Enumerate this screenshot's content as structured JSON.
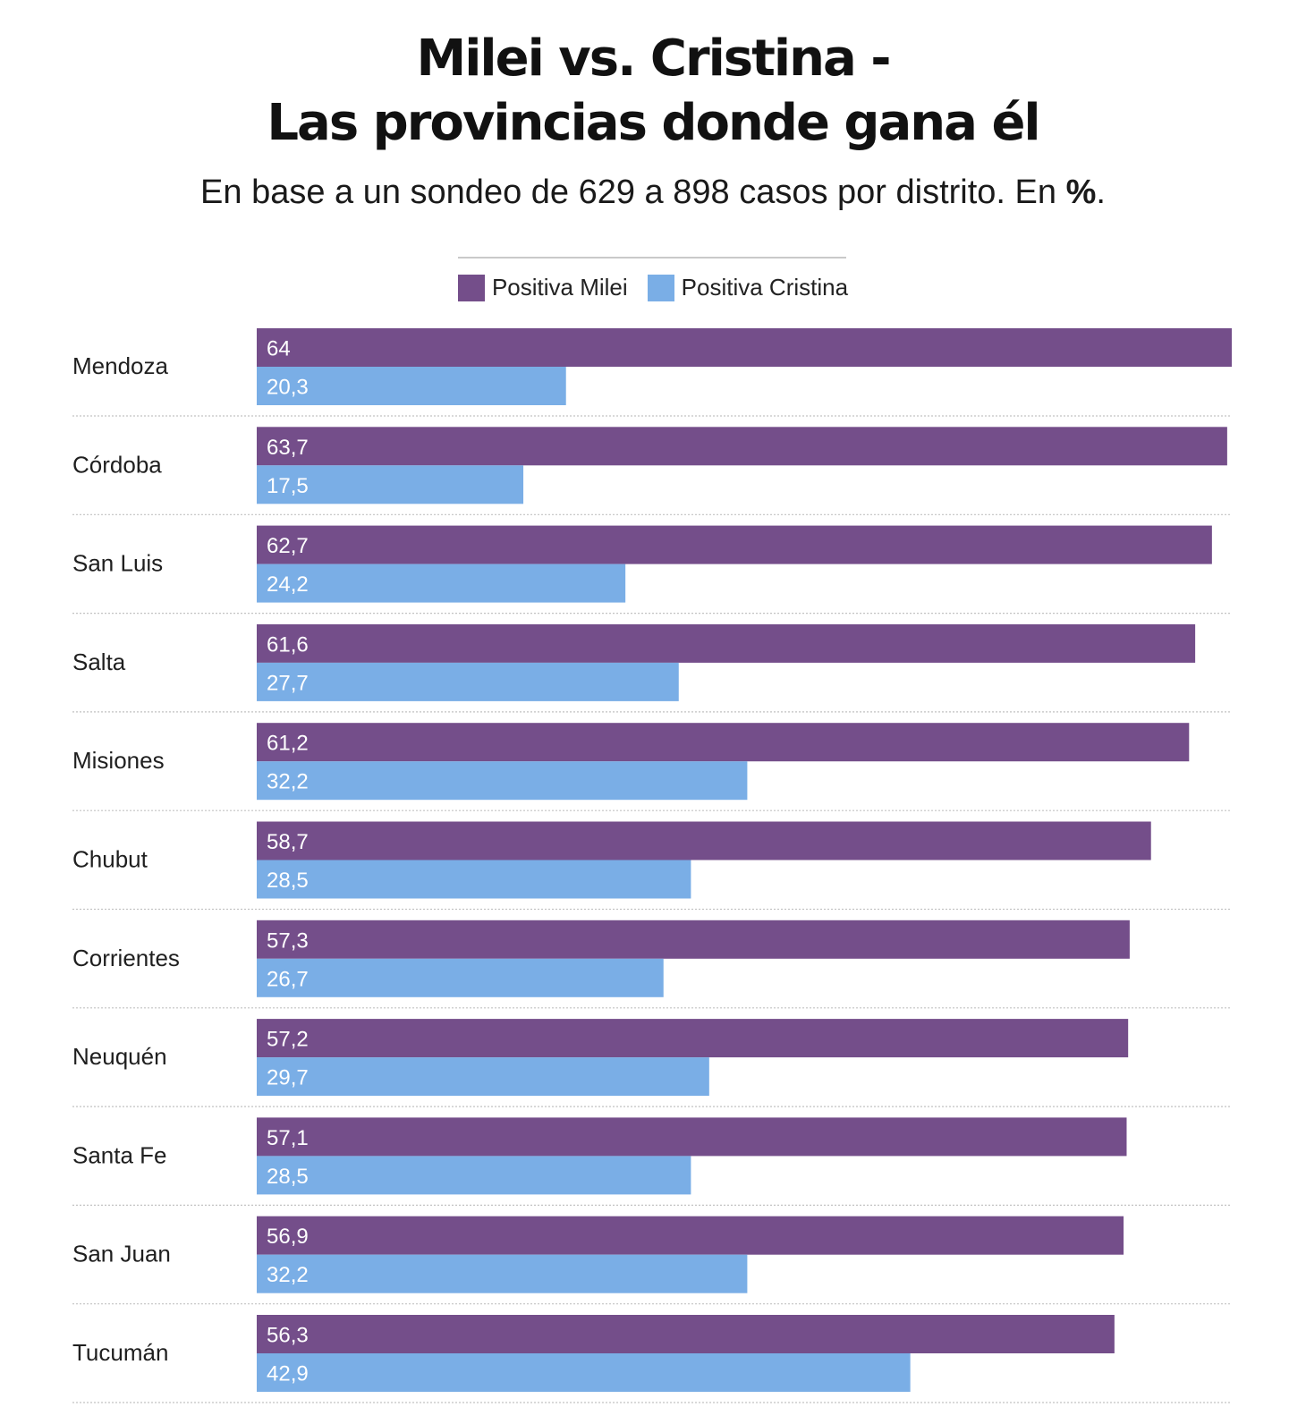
{
  "title_line1": "Milei vs. Cristina -",
  "title_line2": "Las provincias donde gana él",
  "subtitle_main": "En base a un sondeo de 629 a 898 casos por distrito. En ",
  "subtitle_bold": "%",
  "subtitle_end": ".",
  "colors": {
    "milei": "#744e8a",
    "cristina": "#7aaee6",
    "divider": "#c9c9c9"
  },
  "chart_data": {
    "type": "bar",
    "orientation": "horizontal",
    "legend_position": "top-center",
    "grid": false,
    "xlim": [
      0,
      64
    ],
    "categories": [
      "Mendoza",
      "Córdoba",
      "San Luis",
      "Salta",
      "Misiones",
      "Chubut",
      "Corrientes",
      "Neuquén",
      "Santa Fe",
      "San Juan",
      "Tucumán"
    ],
    "series": [
      {
        "name": "Positiva Milei",
        "values": [
          64,
          63.7,
          62.7,
          61.6,
          61.2,
          58.7,
          57.3,
          57.2,
          57.1,
          56.9,
          56.3
        ],
        "labels": [
          "64",
          "63,7",
          "62,7",
          "61,6",
          "61,2",
          "58,7",
          "57,3",
          "57,2",
          "57,1",
          "56,9",
          "56,3"
        ]
      },
      {
        "name": "Positiva Cristina",
        "values": [
          20.3,
          17.5,
          24.2,
          27.7,
          32.2,
          28.5,
          26.7,
          29.7,
          28.5,
          32.2,
          42.9
        ],
        "labels": [
          "20,3",
          "17,5",
          "24,2",
          "27,7",
          "32,2",
          "28,5",
          "26,7",
          "29,7",
          "28,5",
          "32,2",
          "42,9"
        ]
      }
    ]
  }
}
